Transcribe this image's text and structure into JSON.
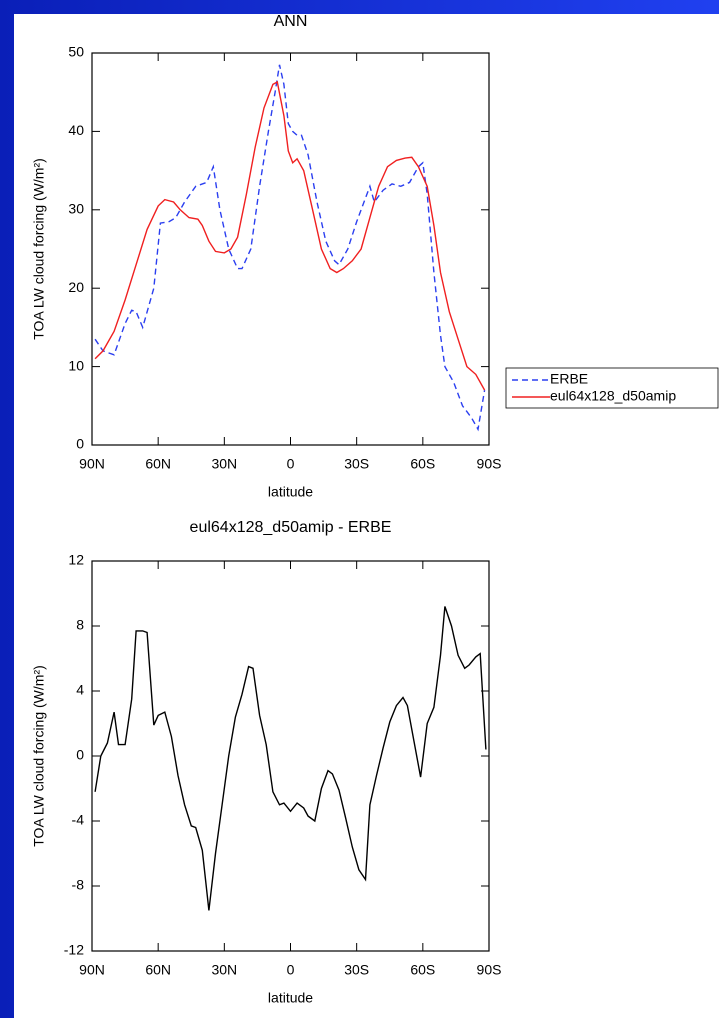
{
  "chart_data": [
    {
      "type": "line",
      "title": "ANN",
      "xlabel": "latitude",
      "ylabel": "TOA LW cloud forcing (W/m²)",
      "xlim": [
        90,
        -90
      ],
      "xticks": [
        {
          "value": 90,
          "label": "90N"
        },
        {
          "value": 60,
          "label": "60N"
        },
        {
          "value": 30,
          "label": "30N"
        },
        0,
        {
          "value": -30,
          "label": "30S"
        },
        {
          "value": -60,
          "label": "60S"
        },
        {
          "value": -90,
          "label": "90S"
        }
      ],
      "ylim": [
        0,
        50
      ],
      "yticks": [
        0,
        10,
        20,
        30,
        40,
        50
      ],
      "legend": "right",
      "series": [
        {
          "name": "ERBE",
          "color": "#2b3ff0",
          "dash": true,
          "x": [
            88.6,
            85,
            80,
            75,
            72,
            70,
            67,
            62,
            59,
            55,
            52,
            48,
            43,
            38,
            35,
            32,
            28,
            24,
            22,
            18,
            14,
            10,
            7,
            5,
            3,
            1,
            -1,
            -3,
            -5,
            -8,
            -12,
            -16,
            -20,
            -22,
            -26,
            -30,
            -34,
            -36,
            -38,
            -42,
            -46,
            -50,
            -54,
            -58,
            -60,
            -62,
            -65,
            -68,
            -70,
            -74,
            -78,
            -82,
            -85,
            -88
          ],
          "values": [
            13.5,
            12,
            11.5,
            15.5,
            17.2,
            17,
            15,
            20,
            28.3,
            28.5,
            29,
            31,
            33,
            33.5,
            35.5,
            30,
            25,
            22.5,
            22.5,
            25,
            33,
            40,
            45,
            48.5,
            46,
            41,
            40,
            39.5,
            39.5,
            37,
            31,
            26,
            23.5,
            23,
            25,
            28.5,
            31.5,
            33,
            31,
            32.5,
            33.3,
            33,
            33.5,
            35.5,
            36,
            32,
            22,
            14,
            10,
            8,
            5,
            3.5,
            2,
            7
          ]
        },
        {
          "name": "eul64x128_d50amip",
          "color": "#f02020",
          "dash": false,
          "x": [
            88.6,
            85,
            80,
            75,
            70,
            65,
            60,
            57,
            53,
            50,
            46,
            42,
            40,
            37,
            34,
            30,
            27,
            24,
            20,
            16,
            12,
            8,
            6,
            3,
            1,
            -1,
            -3,
            -6,
            -10,
            -14,
            -18,
            -21,
            -24,
            -28,
            -32,
            -36,
            -40,
            -44,
            -48,
            -52,
            -55,
            -58,
            -62,
            -65,
            -68,
            -72,
            -76,
            -80,
            -84,
            -88
          ],
          "values": [
            11,
            12,
            14.5,
            18.5,
            23,
            27.5,
            30.5,
            31.3,
            31,
            30,
            29,
            28.8,
            28,
            26,
            24.7,
            24.5,
            25,
            26.5,
            32,
            38,
            43,
            46,
            46.3,
            42,
            37.5,
            36,
            36.5,
            35,
            30,
            25,
            22.5,
            22,
            22.5,
            23.5,
            25,
            29,
            33,
            35.5,
            36.3,
            36.6,
            36.7,
            35.5,
            33,
            28,
            22,
            17,
            13.5,
            10,
            9,
            7
          ]
        }
      ]
    },
    {
      "type": "line",
      "title": "eul64x128_d50amip - ERBE",
      "xlabel": "latitude",
      "ylabel": "TOA LW cloud forcing (W/m²)",
      "xlim": [
        90,
        -90
      ],
      "xticks": [
        {
          "value": 90,
          "label": "90N"
        },
        {
          "value": 60,
          "label": "60N"
        },
        {
          "value": 30,
          "label": "30N"
        },
        0,
        {
          "value": -30,
          "label": "30S"
        },
        {
          "value": -60,
          "label": "60S"
        },
        {
          "value": -90,
          "label": "90S"
        }
      ],
      "ylim": [
        -12,
        12
      ],
      "yticks": [
        -12,
        -8,
        -4,
        0,
        4,
        8,
        12
      ],
      "series": [
        {
          "color": "#000000",
          "dash": false,
          "x": [
            88.6,
            86,
            83,
            80,
            78,
            75,
            72,
            70,
            67,
            65,
            62,
            60,
            57,
            54,
            51,
            48,
            45,
            43,
            40,
            37,
            34,
            31,
            28,
            25,
            22,
            19,
            17,
            14,
            11,
            8,
            5,
            3,
            0,
            -3,
            -6,
            -8,
            -11,
            -14,
            -17,
            -19,
            -22,
            -25,
            -28,
            -31,
            -34,
            -36,
            -39,
            -42,
            -45,
            -48,
            -51,
            -53,
            -56,
            -59,
            -62,
            -65,
            -68,
            -70,
            -73,
            -76,
            -79,
            -81,
            -84,
            -86,
            -88.6
          ],
          "values": [
            -2.2,
            0,
            0.8,
            2.7,
            0.7,
            0.7,
            3.5,
            7.7,
            7.7,
            7.6,
            1.9,
            2.5,
            2.7,
            1.2,
            -1.2,
            -3,
            -4.3,
            -4.4,
            -5.8,
            -9.5,
            -6,
            -3,
            0,
            2.4,
            3.8,
            5.5,
            5.4,
            2.5,
            0.7,
            -2.2,
            -3,
            -2.9,
            -3.4,
            -2.9,
            -3.2,
            -3.7,
            -4,
            -2,
            -0.9,
            -1.1,
            -2.1,
            -3.8,
            -5.6,
            -7,
            -7.6,
            -3,
            -1.2,
            0.5,
            2.1,
            3.1,
            3.6,
            3.1,
            0.9,
            -1.3,
            2,
            3,
            6.2,
            9.2,
            8,
            6.2,
            5.4,
            5.6,
            6.1,
            6.3,
            0.4
          ]
        }
      ]
    }
  ]
}
